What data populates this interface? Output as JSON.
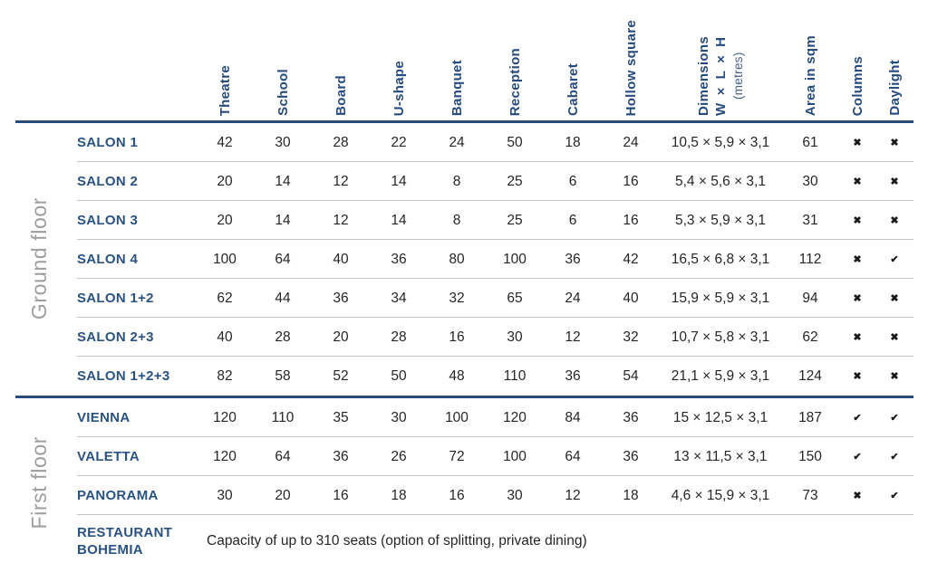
{
  "colors": {
    "navy": "#274B7D",
    "navy_soft": "#46618C",
    "room_name": "#2A5382",
    "text": "#262626",
    "separator": "#c6c6c6",
    "floor_label": "#9e9e9e",
    "mark": "#1b1b1b"
  },
  "marks": {
    "yes": "✔",
    "no": "✖"
  },
  "table": {
    "capacity_headers": [
      "Theatre",
      "School",
      "Board",
      "U-shape",
      "Banquet",
      "Reception",
      "Cabaret",
      "Hollow square"
    ],
    "dimensions_header": [
      "Dimensions",
      "W × L × H",
      "(metres)"
    ],
    "info_headers": [
      "Area in sqm",
      "Columns",
      "Daylight"
    ],
    "groups": [
      {
        "label": "Ground floor",
        "rows": [
          {
            "name": "SALON 1",
            "capacities": [
              42,
              30,
              28,
              22,
              24,
              50,
              18,
              24
            ],
            "dimensions": "10,5 × 5,9 × 3,1",
            "area": 61,
            "columns": "no",
            "daylight": "no"
          },
          {
            "name": "SALON 2",
            "capacities": [
              20,
              14,
              12,
              14,
              8,
              25,
              6,
              16
            ],
            "dimensions": "5,4 × 5,6 × 3,1",
            "area": 30,
            "columns": "no",
            "daylight": "no"
          },
          {
            "name": "SALON 3",
            "capacities": [
              20,
              14,
              12,
              14,
              8,
              25,
              6,
              16
            ],
            "dimensions": "5,3 × 5,9 × 3,1",
            "area": 31,
            "columns": "no",
            "daylight": "no"
          },
          {
            "name": "SALON 4",
            "capacities": [
              100,
              64,
              40,
              36,
              80,
              100,
              36,
              42
            ],
            "dimensions": "16,5 × 6,8 × 3,1",
            "area": 112,
            "columns": "no",
            "daylight": "yes"
          },
          {
            "name": "SALON 1+2",
            "capacities": [
              62,
              44,
              36,
              34,
              32,
              65,
              24,
              40
            ],
            "dimensions": "15,9 × 5,9 × 3,1",
            "area": 94,
            "columns": "no",
            "daylight": "no"
          },
          {
            "name": "SALON 2+3",
            "capacities": [
              40,
              28,
              20,
              28,
              16,
              30,
              12,
              32
            ],
            "dimensions": "10,7 × 5,8 × 3,1",
            "area": 62,
            "columns": "no",
            "daylight": "no"
          },
          {
            "name": "SALON 1+2+3",
            "capacities": [
              82,
              58,
              52,
              50,
              48,
              110,
              36,
              54
            ],
            "dimensions": "21,1 × 5,9 × 3,1",
            "area": 124,
            "columns": "no",
            "daylight": "no"
          }
        ]
      },
      {
        "label": "First floor",
        "rows": [
          {
            "name": "VIENNA",
            "capacities": [
              120,
              110,
              35,
              30,
              100,
              120,
              84,
              36
            ],
            "dimensions": "15 × 12,5 × 3,1",
            "area": 187,
            "columns": "yes",
            "daylight": "yes"
          },
          {
            "name": "VALETTA",
            "capacities": [
              120,
              64,
              36,
              26,
              72,
              100,
              64,
              36
            ],
            "dimensions": "13 × 11,5 × 3,1",
            "area": 150,
            "columns": "yes",
            "daylight": "yes"
          },
          {
            "name": "PANORAMA",
            "capacities": [
              30,
              20,
              16,
              18,
              16,
              30,
              12,
              18
            ],
            "dimensions": "4,6 × 15,9 × 3,1",
            "area": 73,
            "columns": "no",
            "daylight": "yes"
          },
          {
            "name": "RESTAURANT BOHEMIA",
            "note": "Capacity of up to 310 seats (option of splitting, private dining)"
          }
        ]
      }
    ]
  }
}
